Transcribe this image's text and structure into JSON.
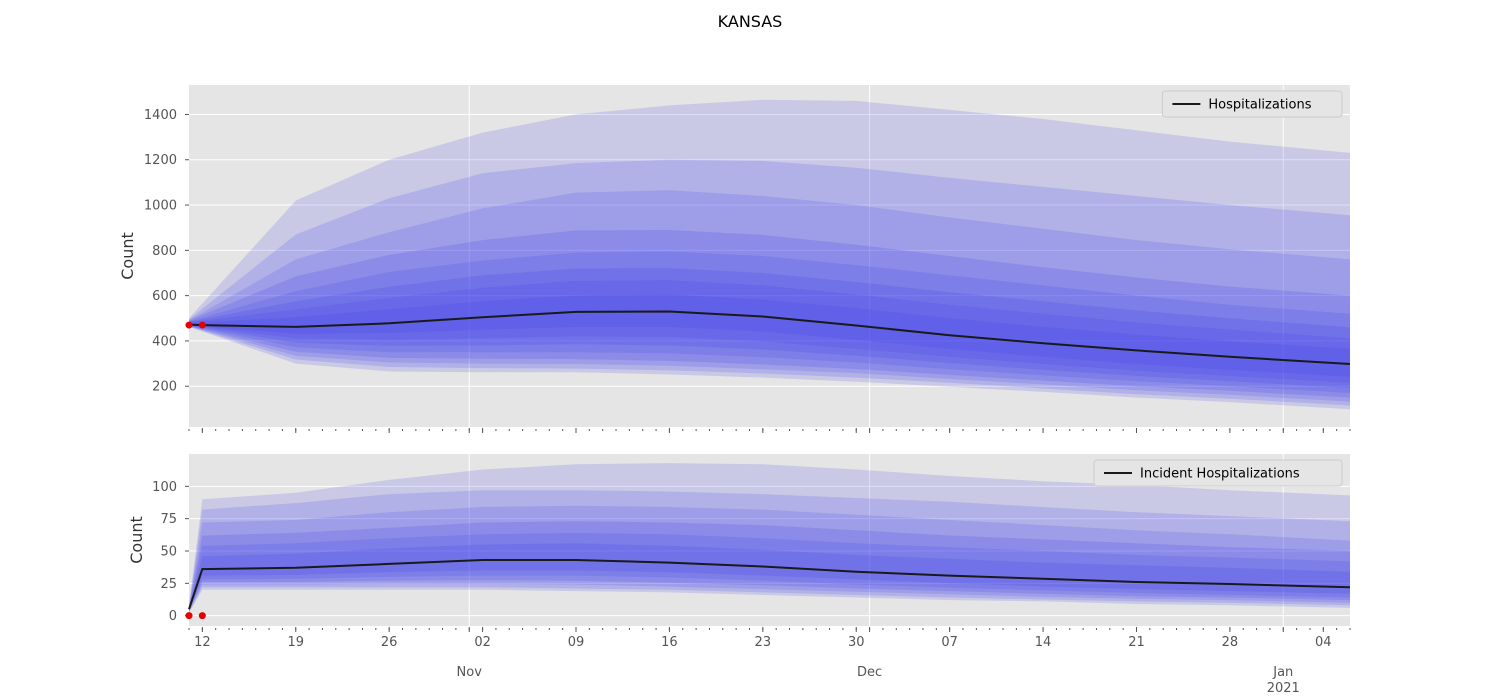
{
  "figure": {
    "title": "KANSAS"
  },
  "colors": {
    "plot_bg": "#e5e5e5",
    "grid": "#ffffff",
    "band": "#3a3aee",
    "median_line": "#1a1a1a",
    "observed_points": "#e60000",
    "tick_text": "#555555"
  },
  "x_axis": {
    "start_date": "2020-10-11",
    "end_date": "2021-01-06",
    "day_ticks": [
      {
        "date": "2020-10-12",
        "label": "12"
      },
      {
        "date": "2020-10-19",
        "label": "19"
      },
      {
        "date": "2020-10-26",
        "label": "26"
      },
      {
        "date": "2020-11-02",
        "label": "02"
      },
      {
        "date": "2020-11-09",
        "label": "09"
      },
      {
        "date": "2020-11-16",
        "label": "16"
      },
      {
        "date": "2020-11-23",
        "label": "23"
      },
      {
        "date": "2020-11-30",
        "label": "30"
      },
      {
        "date": "2020-12-07",
        "label": "07"
      },
      {
        "date": "2020-12-14",
        "label": "14"
      },
      {
        "date": "2020-12-21",
        "label": "21"
      },
      {
        "date": "2020-12-28",
        "label": "28"
      },
      {
        "date": "2021-01-04",
        "label": "04"
      }
    ],
    "month_ticks": [
      {
        "date": "2020-11-01",
        "label": "Nov",
        "sublabel": ""
      },
      {
        "date": "2020-12-01",
        "label": "Dec",
        "sublabel": ""
      },
      {
        "date": "2021-01-01",
        "label": "Jan",
        "sublabel": "2021"
      }
    ]
  },
  "chart_data": [
    {
      "type": "area",
      "title": "",
      "ylabel": "Count",
      "xlabel": "",
      "ylim": [
        20,
        1530
      ],
      "yticks": [
        200,
        400,
        600,
        800,
        1000,
        1200,
        1400
      ],
      "grid": true,
      "legend": {
        "position": "upper-right",
        "label": "Hospitalizations"
      },
      "median": {
        "name": "Hospitalizations",
        "x": [
          "2020-10-11",
          "2020-10-12",
          "2020-10-19",
          "2020-10-26",
          "2020-11-02",
          "2020-11-09",
          "2020-11-16",
          "2020-11-23",
          "2020-11-30",
          "2020-12-07",
          "2020-12-14",
          "2020-12-21",
          "2020-12-28",
          "2021-01-06"
        ],
        "y": [
          472,
          470,
          462,
          478,
          505,
          528,
          530,
          508,
          468,
          425,
          390,
          358,
          330,
          298
        ]
      },
      "quantile_bands": [
        {
          "x": [
            "2020-10-11",
            "2020-10-19",
            "2020-10-26",
            "2020-11-02",
            "2020-11-09",
            "2020-11-16",
            "2020-11-23",
            "2020-11-30",
            "2020-12-07",
            "2020-12-14",
            "2020-12-21",
            "2020-12-28",
            "2021-01-06"
          ],
          "lower": [
            462,
            300,
            265,
            262,
            262,
            252,
            238,
            220,
            198,
            175,
            150,
            130,
            98
          ],
          "upper": [
            500,
            1020,
            1200,
            1320,
            1400,
            1440,
            1465,
            1460,
            1420,
            1380,
            1330,
            1280,
            1230
          ]
        },
        {
          "x": [
            "2020-10-11",
            "2020-10-19",
            "2020-10-26",
            "2020-11-02",
            "2020-11-09",
            "2020-11-16",
            "2020-11-23",
            "2020-11-30",
            "2020-12-07",
            "2020-12-14",
            "2020-12-21",
            "2020-12-28",
            "2021-01-06"
          ],
          "lower": [
            463,
            318,
            285,
            280,
            278,
            270,
            256,
            238,
            215,
            190,
            165,
            145,
            115
          ],
          "upper": [
            496,
            870,
            1030,
            1140,
            1185,
            1200,
            1195,
            1165,
            1120,
            1080,
            1040,
            1000,
            955
          ]
        },
        {
          "x": [
            "2020-10-11",
            "2020-10-19",
            "2020-10-26",
            "2020-11-02",
            "2020-11-09",
            "2020-11-16",
            "2020-11-23",
            "2020-11-30",
            "2020-12-07",
            "2020-12-14",
            "2020-12-21",
            "2020-12-28",
            "2021-01-06"
          ],
          "lower": [
            464,
            335,
            305,
            300,
            298,
            290,
            275,
            258,
            232,
            208,
            182,
            162,
            132
          ],
          "upper": [
            492,
            760,
            880,
            985,
            1055,
            1065,
            1040,
            1000,
            945,
            895,
            845,
            805,
            760
          ]
        },
        {
          "x": [
            "2020-10-11",
            "2020-10-19",
            "2020-10-26",
            "2020-11-02",
            "2020-11-09",
            "2020-11-16",
            "2020-11-23",
            "2020-11-30",
            "2020-12-07",
            "2020-12-14",
            "2020-12-21",
            "2020-12-28",
            "2021-01-06"
          ],
          "lower": [
            465,
            352,
            325,
            322,
            320,
            312,
            296,
            276,
            250,
            225,
            200,
            180,
            150
          ],
          "upper": [
            490,
            685,
            780,
            845,
            888,
            890,
            868,
            825,
            775,
            725,
            680,
            640,
            600
          ]
        },
        {
          "x": [
            "2020-10-11",
            "2020-10-19",
            "2020-10-26",
            "2020-11-02",
            "2020-11-09",
            "2020-11-16",
            "2020-11-23",
            "2020-11-30",
            "2020-12-07",
            "2020-12-14",
            "2020-12-21",
            "2020-12-28",
            "2021-01-06"
          ],
          "lower": [
            466,
            372,
            350,
            350,
            350,
            345,
            328,
            305,
            275,
            248,
            222,
            200,
            170
          ],
          "upper": [
            487,
            620,
            705,
            755,
            790,
            795,
            775,
            735,
            690,
            645,
            600,
            560,
            520
          ]
        },
        {
          "x": [
            "2020-10-11",
            "2020-10-19",
            "2020-10-26",
            "2020-11-02",
            "2020-11-09",
            "2020-11-16",
            "2020-11-23",
            "2020-11-30",
            "2020-12-07",
            "2020-12-14",
            "2020-12-21",
            "2020-12-28",
            "2021-01-06"
          ],
          "lower": [
            467,
            392,
            378,
            380,
            385,
            380,
            362,
            335,
            302,
            272,
            245,
            222,
            192
          ],
          "upper": [
            485,
            575,
            640,
            690,
            720,
            722,
            700,
            660,
            615,
            575,
            535,
            500,
            460
          ]
        },
        {
          "x": [
            "2020-10-11",
            "2020-10-19",
            "2020-10-26",
            "2020-11-02",
            "2020-11-09",
            "2020-11-16",
            "2020-11-23",
            "2020-11-30",
            "2020-12-07",
            "2020-12-14",
            "2020-12-21",
            "2020-12-28",
            "2021-01-06"
          ],
          "lower": [
            468,
            412,
            405,
            412,
            420,
            418,
            398,
            365,
            330,
            298,
            268,
            245,
            215
          ],
          "upper": [
            482,
            540,
            590,
            635,
            665,
            668,
            645,
            605,
            560,
            520,
            482,
            450,
            412
          ]
        },
        {
          "x": [
            "2020-10-11",
            "2020-10-19",
            "2020-10-26",
            "2020-11-02",
            "2020-11-09",
            "2020-11-16",
            "2020-11-23",
            "2020-11-30",
            "2020-12-07",
            "2020-12-14",
            "2020-12-21",
            "2020-12-28",
            "2021-01-06"
          ],
          "lower": [
            469,
            432,
            435,
            450,
            462,
            462,
            442,
            405,
            365,
            330,
            298,
            272,
            242
          ],
          "upper": [
            478,
            505,
            540,
            575,
            600,
            605,
            582,
            545,
            500,
            462,
            428,
            398,
            365
          ]
        }
      ],
      "observed_points": {
        "x": [
          "2020-10-11",
          "2020-10-12"
        ],
        "y": [
          470,
          470
        ]
      }
    },
    {
      "type": "area",
      "title": "",
      "ylabel": "Count",
      "xlabel": "",
      "ylim": [
        -8,
        125
      ],
      "yticks": [
        0,
        25,
        50,
        75,
        100
      ],
      "grid": true,
      "legend": {
        "position": "upper-right",
        "label": "Incident Hospitalizations"
      },
      "median": {
        "name": "Incident Hospitalizations",
        "x": [
          "2020-10-11",
          "2020-10-12",
          "2020-10-19",
          "2020-10-26",
          "2020-11-02",
          "2020-11-09",
          "2020-11-16",
          "2020-11-23",
          "2020-11-30",
          "2020-12-07",
          "2020-12-14",
          "2020-12-21",
          "2020-12-28",
          "2021-01-06"
        ],
        "y": [
          5,
          36,
          37,
          40,
          43,
          43,
          41,
          38,
          34,
          31,
          28.5,
          26,
          24.5,
          22
        ]
      },
      "quantile_bands": [
        {
          "x": [
            "2020-10-11",
            "2020-10-12",
            "2020-10-19",
            "2020-10-26",
            "2020-11-02",
            "2020-11-09",
            "2020-11-16",
            "2020-11-23",
            "2020-11-30",
            "2020-12-07",
            "2020-12-14",
            "2020-12-21",
            "2020-12-28",
            "2021-01-06"
          ],
          "lower": [
            2,
            20,
            20,
            20,
            20,
            19,
            18,
            16,
            14,
            12,
            11,
            9,
            8,
            6
          ],
          "upper": [
            8,
            90,
            95,
            105,
            113,
            117,
            118,
            117,
            113,
            108,
            104,
            101,
            97,
            93
          ]
        },
        {
          "x": [
            "2020-10-11",
            "2020-10-12",
            "2020-10-19",
            "2020-10-26",
            "2020-11-02",
            "2020-11-09",
            "2020-11-16",
            "2020-11-23",
            "2020-11-30",
            "2020-12-07",
            "2020-12-14",
            "2020-12-21",
            "2020-12-28",
            "2021-01-06"
          ],
          "lower": [
            2.5,
            22,
            22,
            22,
            22,
            21,
            20,
            18,
            16,
            14,
            12.5,
            11,
            10,
            8
          ],
          "upper": [
            7.5,
            82,
            87,
            94,
            97,
            97,
            96,
            94,
            91,
            88,
            84,
            80,
            77,
            73
          ]
        },
        {
          "x": [
            "2020-10-11",
            "2020-10-12",
            "2020-10-19",
            "2020-10-26",
            "2020-11-02",
            "2020-11-09",
            "2020-11-16",
            "2020-11-23",
            "2020-11-30",
            "2020-12-07",
            "2020-12-14",
            "2020-12-21",
            "2020-12-28",
            "2021-01-06"
          ],
          "lower": [
            3,
            24,
            24,
            24.5,
            24.5,
            24,
            22.5,
            20.5,
            18.5,
            16.5,
            14.5,
            13,
            12,
            10
          ],
          "upper": [
            7,
            72,
            74,
            80,
            84,
            85,
            84,
            82,
            78,
            74,
            70,
            66,
            63,
            58
          ]
        },
        {
          "x": [
            "2020-10-11",
            "2020-10-12",
            "2020-10-19",
            "2020-10-26",
            "2020-11-02",
            "2020-11-09",
            "2020-11-16",
            "2020-11-23",
            "2020-11-30",
            "2020-12-07",
            "2020-12-14",
            "2020-12-21",
            "2020-12-28",
            "2021-01-06"
          ],
          "lower": [
            3.5,
            26,
            26,
            27,
            27.5,
            27,
            25.5,
            23.5,
            21,
            19,
            17,
            15,
            14,
            12
          ],
          "upper": [
            6.5,
            62,
            64,
            68,
            72,
            73,
            72,
            70,
            66,
            62,
            59,
            56,
            53,
            50
          ]
        },
        {
          "x": [
            "2020-10-11",
            "2020-10-12",
            "2020-10-19",
            "2020-10-26",
            "2020-11-02",
            "2020-11-09",
            "2020-11-16",
            "2020-11-23",
            "2020-11-30",
            "2020-12-07",
            "2020-12-14",
            "2020-12-21",
            "2020-12-28",
            "2021-01-06"
          ],
          "lower": [
            4,
            28,
            28.5,
            30,
            31,
            31,
            29.5,
            27,
            24,
            21.5,
            19.5,
            17.5,
            16,
            14
          ],
          "upper": [
            6,
            54,
            56,
            60,
            63,
            64,
            63,
            60,
            56,
            53,
            50,
            47,
            45,
            42
          ]
        },
        {
          "x": [
            "2020-10-11",
            "2020-10-12",
            "2020-10-19",
            "2020-10-26",
            "2020-11-02",
            "2020-11-09",
            "2020-11-16",
            "2020-11-23",
            "2020-11-30",
            "2020-12-07",
            "2020-12-14",
            "2020-12-21",
            "2020-12-28",
            "2021-01-06"
          ],
          "lower": [
            4.5,
            31,
            31.5,
            33.5,
            35,
            35,
            33.5,
            31,
            28,
            25,
            22.5,
            20.5,
            19,
            17
          ],
          "upper": [
            5.5,
            46,
            48,
            52,
            55,
            56,
            54,
            51,
            47,
            44,
            41,
            39,
            37,
            34
          ]
        }
      ],
      "observed_points": {
        "x": [
          "2020-10-11",
          "2020-10-12"
        ],
        "y": [
          0,
          0
        ]
      }
    }
  ]
}
